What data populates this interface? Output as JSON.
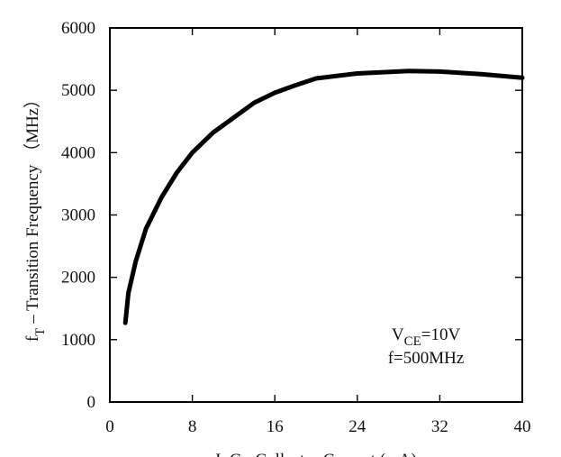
{
  "chart_data": {
    "type": "line",
    "xlabel": "I_C - Collector Current (mA)",
    "ylabel": "f_T - Transition Frequency (MHz)",
    "ylabel_parts": {
      "symbol": "f",
      "subscript": "T",
      "text": " – Transition Frequency （MHz）"
    },
    "xlim": [
      0,
      40
    ],
    "ylim": [
      0,
      6000
    ],
    "x_ticks": [
      0,
      8,
      16,
      24,
      32,
      40
    ],
    "y_ticks": [
      0,
      1000,
      2000,
      3000,
      4000,
      5000,
      6000
    ],
    "grid": false,
    "annotations": [
      {
        "parts": [
          {
            "t": "V"
          },
          {
            "t": "CE",
            "sub": true
          },
          {
            "t": "=10V"
          }
        ]
      },
      {
        "parts": [
          {
            "t": "f=500MHz"
          }
        ]
      }
    ],
    "series": [
      {
        "x": [
          1.5,
          1.8,
          2.5,
          3.5,
          5,
          6.5,
          8,
          10,
          12,
          14,
          16,
          18,
          20,
          24,
          29,
          32,
          36,
          40
        ],
        "y": [
          1270,
          1750,
          2250,
          2780,
          3280,
          3680,
          4000,
          4320,
          4560,
          4800,
          4960,
          5080,
          5190,
          5270,
          5310,
          5300,
          5260,
          5200
        ]
      }
    ]
  }
}
